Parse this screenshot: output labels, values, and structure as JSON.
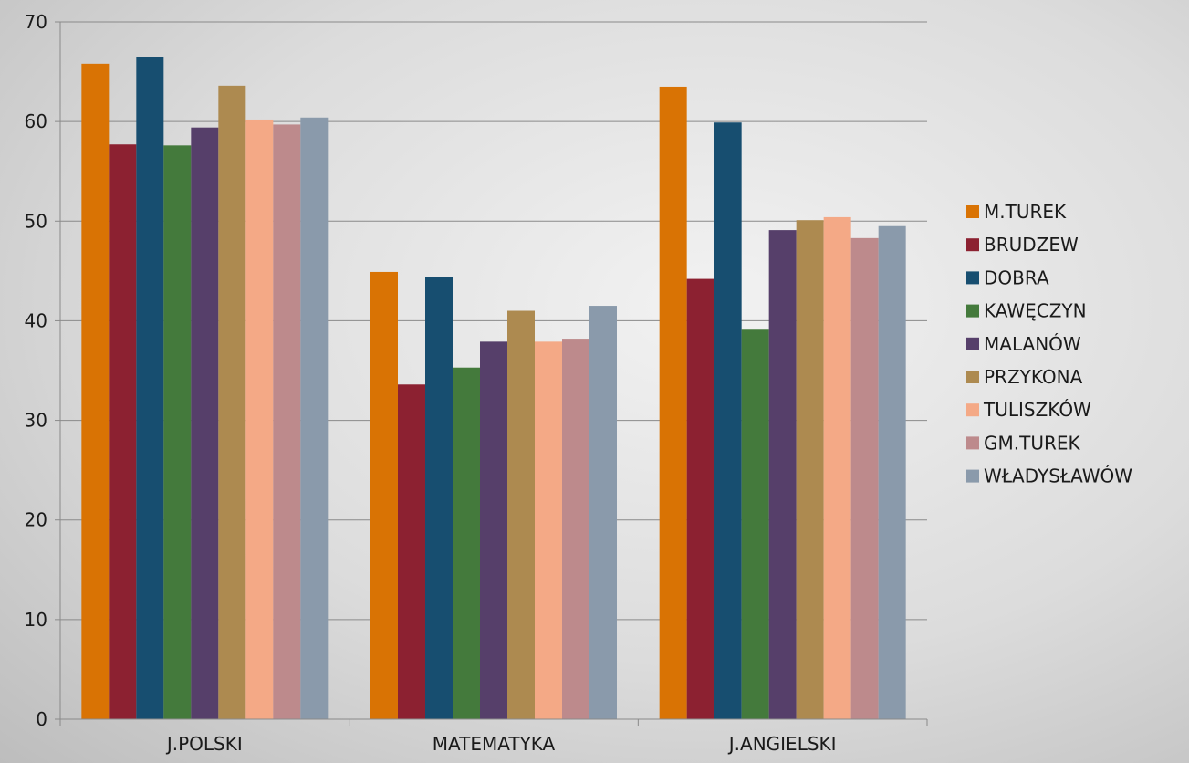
{
  "chart_data": {
    "type": "bar",
    "categories": [
      "J.POLSKI",
      "MATEMATYKA",
      "J.ANGIELSKI"
    ],
    "ylim": [
      0,
      70
    ],
    "yticks": [
      0,
      10,
      20,
      30,
      40,
      50,
      60,
      70
    ],
    "grid": true,
    "legend_position": "right",
    "series": [
      {
        "name": "M.TUREK",
        "color": "#d97304",
        "values": [
          65.8,
          44.9,
          63.5
        ]
      },
      {
        "name": "BRUDZEW",
        "color": "#8c2131",
        "values": [
          57.7,
          33.6,
          44.2
        ]
      },
      {
        "name": "DOBRA",
        "color": "#174e70",
        "values": [
          66.5,
          44.4,
          59.9
        ]
      },
      {
        "name": "KAWĘCZYN",
        "color": "#447a3c",
        "values": [
          57.6,
          35.3,
          39.1
        ]
      },
      {
        "name": "MALANÓW",
        "color": "#563f6a",
        "values": [
          59.4,
          37.9,
          49.1
        ]
      },
      {
        "name": "PRZYKONA",
        "color": "#ad8a50",
        "values": [
          63.6,
          41.0,
          50.1
        ]
      },
      {
        "name": "TULISZKÓW",
        "color": "#f4a986",
        "values": [
          60.2,
          37.9,
          50.4
        ]
      },
      {
        "name": "GM.TUREK",
        "color": "#bd8a8c",
        "values": [
          59.7,
          38.2,
          48.3
        ]
      },
      {
        "name": "WŁADYSŁAWÓW",
        "color": "#8a9aab",
        "values": [
          60.4,
          41.5,
          49.5
        ]
      }
    ]
  }
}
